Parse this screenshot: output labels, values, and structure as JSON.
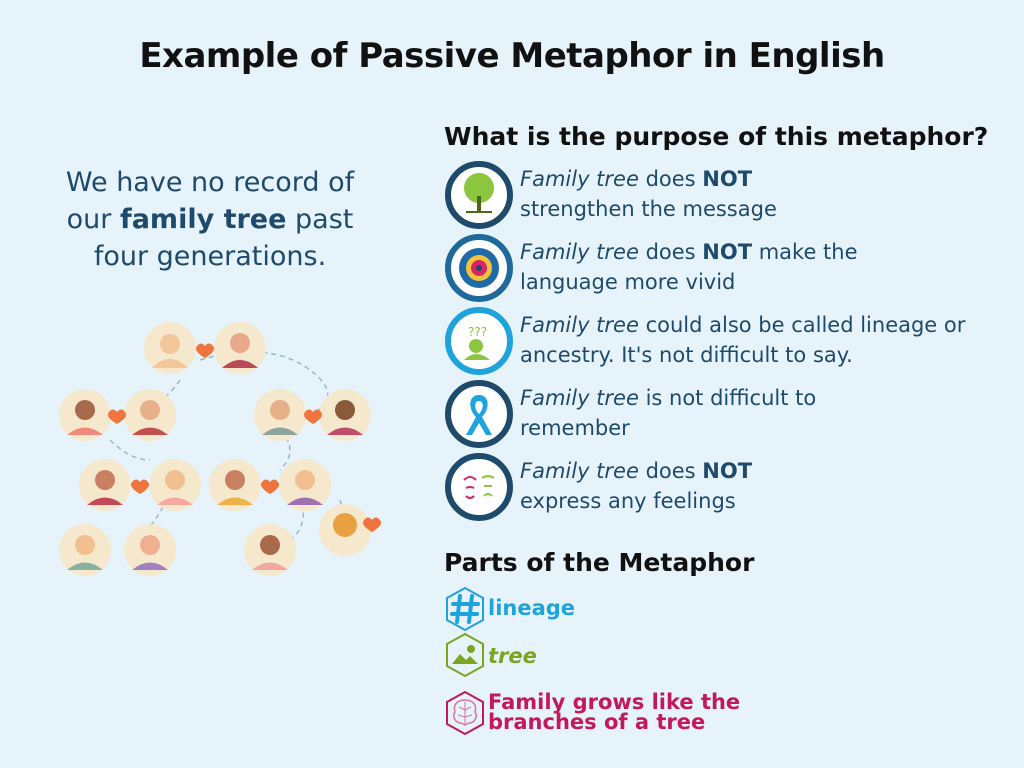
{
  "title": "Example of Passive Metaphor in English",
  "sentence": {
    "before": "We have no record of our ",
    "highlight": "family tree",
    "after": " past four generations."
  },
  "purpose": {
    "heading": "What is the purpose of this metaphor?",
    "items": [
      {
        "icon": "tree-icon",
        "term": "Family tree",
        "parts": [
          " does ",
          "NOT",
          ""
        ],
        "line2": "strengthen the message",
        "inline2": false
      },
      {
        "icon": "mandala-icon",
        "term": "Family tree",
        "parts": [
          " does ",
          "NOT",
          " make the"
        ],
        "line2": "language more vivid",
        "inline2": false
      },
      {
        "icon": "thinking-person-icon",
        "term": "Family tree",
        "parts": [
          " could also be called lineage or",
          "",
          ""
        ],
        "line2": "ancestry. It's not difficult to say.",
        "inline2": false
      },
      {
        "icon": "ribbon-icon",
        "term": "Family tree",
        "parts": [
          " is not difficult to",
          "",
          ""
        ],
        "line2": "remember",
        "inline2": false
      },
      {
        "icon": "faces-icon",
        "term": "Family tree",
        "parts": [
          " does ",
          "NOT",
          ""
        ],
        "line2": "express any feelings",
        "inline2": false
      }
    ]
  },
  "parts": {
    "heading": "Parts of the Metaphor",
    "items": [
      {
        "icon": "hashtag-icon",
        "label": "lineage",
        "color": "#1ea3dc"
      },
      {
        "icon": "image-icon",
        "label": "tree",
        "color": "#7aa61f"
      },
      {
        "icon": "brain-icon",
        "label_line1": "Family grows like the",
        "label_line2": "branches of a tree",
        "color": "#c4185c"
      }
    ]
  },
  "colors": {
    "background": "#e6f3fb",
    "text": "#1e4a6b",
    "icon_ring": "#1e4a6b",
    "heart": "#f0743e"
  }
}
